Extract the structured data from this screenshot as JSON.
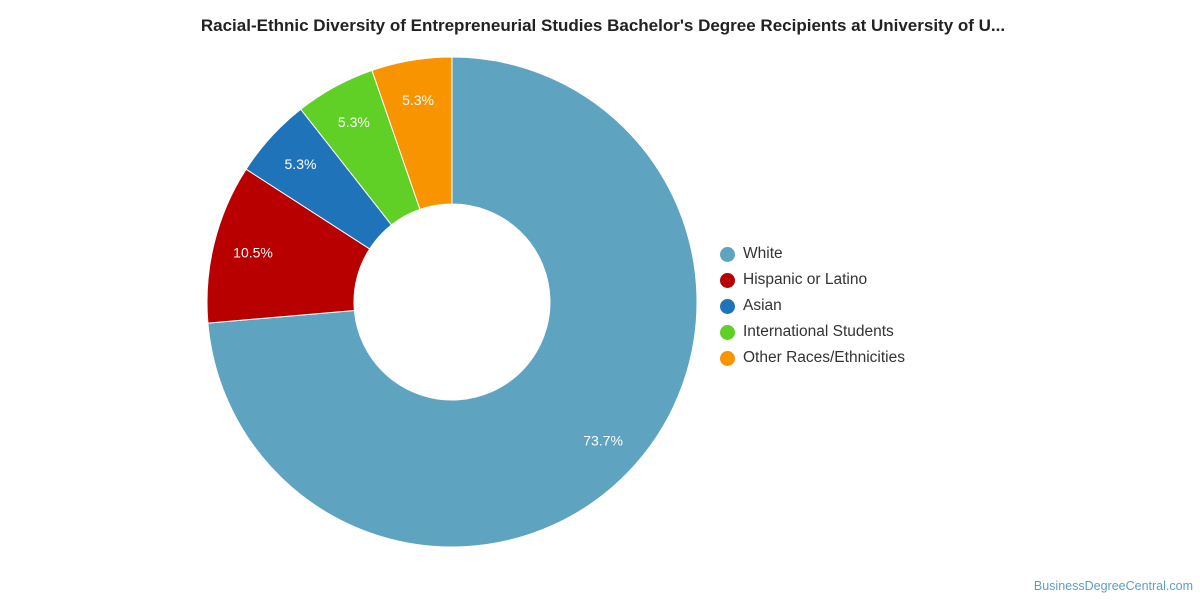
{
  "chart_data": {
    "type": "pie",
    "title": "Racial-Ethnic Diversity of Entrepreneurial Studies Bachelor's Degree Recipients at University of U...",
    "categories": [
      "White",
      "Hispanic or Latino",
      "Asian",
      "International Students",
      "Other Races/Ethnicities"
    ],
    "values": [
      73.7,
      10.5,
      5.3,
      5.3,
      5.3
    ],
    "value_labels": [
      "73.7%",
      "10.5%",
      "5.3%",
      "5.3%",
      "5.3%"
    ],
    "colors": [
      "#5ea3bf",
      "#b90000",
      "#1f74b9",
      "#60cf26",
      "#f89400"
    ],
    "donut": true,
    "legend": "right"
  },
  "footer": {
    "source": "BusinessDegreeCentral.com"
  }
}
